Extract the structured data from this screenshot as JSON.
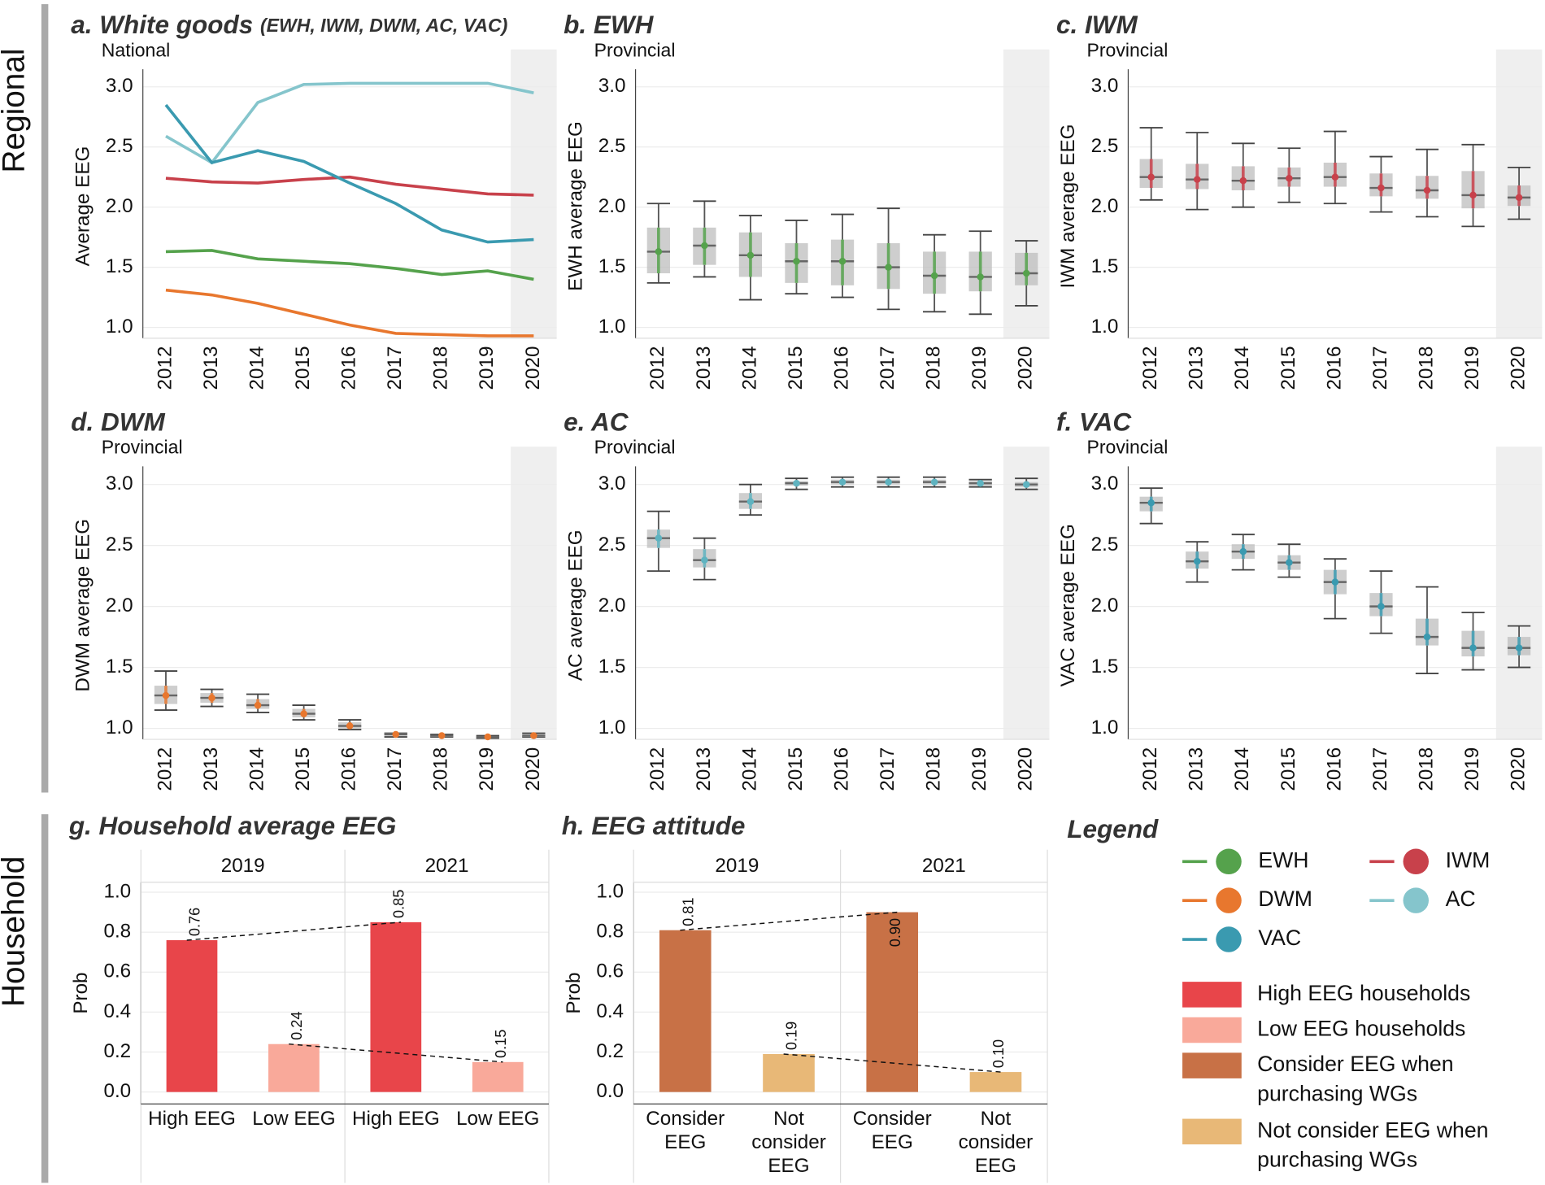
{
  "row_labels": [
    "Regional",
    "Household"
  ],
  "chart_data": [
    {
      "type": "line",
      "title": "a. White goods",
      "title_note": "(EWH, IWM, DWM, AC, VAC)",
      "subtitle": "National",
      "y_label": "Average EEG",
      "categories": [
        "2012",
        "2013",
        "2014",
        "2015",
        "2016",
        "2017",
        "2018",
        "2019",
        "2020"
      ],
      "shaded": [
        "2020"
      ],
      "ylim": [
        0.91,
        3.27
      ],
      "yticks": [
        {
          "value": 1,
          "label": "1.0"
        },
        1.5,
        {
          "value": 2,
          "label": "2.0"
        },
        2.5,
        {
          "value": 3,
          "label": "3.0"
        }
      ],
      "grid": true,
      "series": [
        {
          "name": "EWH",
          "color": "#55a24c",
          "values": [
            1.63,
            1.64,
            1.57,
            1.55,
            1.53,
            1.49,
            1.44,
            1.47,
            1.4
          ]
        },
        {
          "name": "IWM",
          "color": "#c8414b",
          "values": [
            2.24,
            2.21,
            2.2,
            2.23,
            2.25,
            2.19,
            2.15,
            2.11,
            2.1
          ]
        },
        {
          "name": "DWM",
          "color": "#e8772e",
          "values": [
            1.31,
            1.27,
            1.2,
            1.11,
            1.02,
            0.95,
            0.94,
            0.93,
            0.93
          ]
        },
        {
          "name": "AC",
          "color": "#85c5cc",
          "values": [
            2.59,
            2.37,
            2.87,
            3.02,
            3.03,
            3.03,
            3.03,
            3.03,
            2.95
          ]
        },
        {
          "name": "VAC",
          "color": "#3a9ab0",
          "values": [
            2.85,
            2.37,
            2.47,
            2.38,
            2.2,
            2.03,
            1.81,
            1.71,
            1.73
          ]
        }
      ]
    },
    {
      "type": "box",
      "title": "b. EWH",
      "subtitle": "Provincial",
      "y_label": "EWH average EEG",
      "color": "#55a24c",
      "categories": [
        "2012",
        "2013",
        "2014",
        "2015",
        "2016",
        "2017",
        "2018",
        "2019",
        "2020"
      ],
      "shaded": [
        "2020"
      ],
      "ylim": [
        0.91,
        3.27
      ],
      "yticks": [
        {
          "value": 1,
          "label": "1.0"
        },
        1.5,
        {
          "value": 2,
          "label": "2.0"
        },
        2.5,
        {
          "value": 3,
          "label": "3.0"
        }
      ],
      "grid": true,
      "whisker_low": [
        1.37,
        1.42,
        1.23,
        1.28,
        1.25,
        1.15,
        1.13,
        1.11,
        1.18
      ],
      "q1": [
        1.45,
        1.52,
        1.42,
        1.37,
        1.35,
        1.32,
        1.28,
        1.3,
        1.35
      ],
      "median": [
        1.63,
        1.68,
        1.6,
        1.55,
        1.55,
        1.5,
        1.43,
        1.42,
        1.45
      ],
      "q3": [
        1.83,
        1.83,
        1.79,
        1.7,
        1.73,
        1.7,
        1.63,
        1.63,
        1.62
      ],
      "whisker_high": [
        2.03,
        2.05,
        1.93,
        1.89,
        1.94,
        1.99,
        1.77,
        1.8,
        1.72
      ]
    },
    {
      "type": "box",
      "title": "c. IWM",
      "subtitle": "Provincial",
      "y_label": "IWM average EEG",
      "color": "#c8414b",
      "categories": [
        "2012",
        "2013",
        "2014",
        "2015",
        "2016",
        "2017",
        "2018",
        "2019",
        "2020"
      ],
      "shaded": [
        "2020"
      ],
      "ylim": [
        0.91,
        3.27
      ],
      "yticks": [
        {
          "value": 1,
          "label": "1.0"
        },
        1.5,
        {
          "value": 2,
          "label": "2.0"
        },
        2.5,
        {
          "value": 3,
          "label": "3.0"
        }
      ],
      "grid": true,
      "whisker_low": [
        2.06,
        1.98,
        2.0,
        2.04,
        2.03,
        1.96,
        1.92,
        1.84,
        1.9
      ],
      "q1": [
        2.16,
        2.15,
        2.14,
        2.17,
        2.17,
        2.09,
        2.07,
        1.99,
        2.01
      ],
      "median": [
        2.25,
        2.23,
        2.22,
        2.24,
        2.25,
        2.16,
        2.14,
        2.1,
        2.08
      ],
      "q3": [
        2.4,
        2.36,
        2.34,
        2.33,
        2.37,
        2.28,
        2.26,
        2.3,
        2.18
      ],
      "whisker_high": [
        2.66,
        2.62,
        2.53,
        2.49,
        2.63,
        2.42,
        2.48,
        2.52,
        2.33
      ]
    },
    {
      "type": "box",
      "title": "d. DWM",
      "subtitle": "Provincial",
      "y_label": "DWM average EEG",
      "color": "#e8772e",
      "categories": [
        "2012",
        "2013",
        "2014",
        "2015",
        "2016",
        "2017",
        "2018",
        "2019",
        "2020"
      ],
      "shaded": [
        "2020"
      ],
      "ylim": [
        0.91,
        3.27
      ],
      "yticks": [
        {
          "value": 1,
          "label": "1.0"
        },
        1.5,
        {
          "value": 2,
          "label": "2.0"
        },
        2.5,
        {
          "value": 3,
          "label": "3.0"
        }
      ],
      "grid": true,
      "whisker_low": [
        1.15,
        1.18,
        1.13,
        1.07,
        0.99,
        0.93,
        0.93,
        0.92,
        0.93
      ],
      "q1": [
        1.2,
        1.21,
        1.16,
        1.09,
        1.0,
        0.94,
        0.93,
        0.93,
        0.93
      ],
      "median": [
        1.27,
        1.25,
        1.19,
        1.12,
        1.02,
        0.95,
        0.94,
        0.93,
        0.94
      ],
      "q3": [
        1.35,
        1.29,
        1.24,
        1.16,
        1.05,
        0.96,
        0.94,
        0.93,
        0.95
      ],
      "whisker_high": [
        1.47,
        1.32,
        1.28,
        1.19,
        1.07,
        0.96,
        0.95,
        0.94,
        0.96
      ]
    },
    {
      "type": "box",
      "title": "e. AC",
      "subtitle": "Provincial",
      "y_label": "AC average EEG",
      "color": "#5fb3c0",
      "categories": [
        "2012",
        "2013",
        "2014",
        "2015",
        "2016",
        "2017",
        "2018",
        "2019",
        "2020"
      ],
      "shaded": [
        "2020"
      ],
      "ylim": [
        0.91,
        3.27
      ],
      "yticks": [
        {
          "value": 1,
          "label": "1.0"
        },
        1.5,
        {
          "value": 2,
          "label": "2.0"
        },
        2.5,
        {
          "value": 3,
          "label": "3.0"
        }
      ],
      "grid": true,
      "whisker_low": [
        2.29,
        2.22,
        2.75,
        2.96,
        2.98,
        2.98,
        2.98,
        2.98,
        2.96
      ],
      "q1": [
        2.48,
        2.32,
        2.8,
        2.99,
        3.0,
        3.0,
        3.0,
        2.99,
        2.98
      ],
      "median": [
        2.56,
        2.38,
        2.86,
        3.01,
        3.02,
        3.02,
        3.02,
        3.01,
        3.0
      ],
      "q3": [
        2.63,
        2.47,
        2.93,
        3.03,
        3.04,
        3.04,
        3.04,
        3.03,
        3.02
      ],
      "whisker_high": [
        2.78,
        2.56,
        3.0,
        3.05,
        3.06,
        3.06,
        3.06,
        3.04,
        3.05
      ]
    },
    {
      "type": "box",
      "title": "f. VAC",
      "subtitle": "Provincial",
      "y_label": "VAC average EEG",
      "color": "#3a9ab0",
      "categories": [
        "2012",
        "2013",
        "2014",
        "2015",
        "2016",
        "2017",
        "2018",
        "2019",
        "2020"
      ],
      "shaded": [
        "2020"
      ],
      "ylim": [
        0.91,
        3.27
      ],
      "yticks": [
        {
          "value": 1,
          "label": "1.0"
        },
        1.5,
        {
          "value": 2,
          "label": "2.0"
        },
        2.5,
        {
          "value": 3,
          "label": "3.0"
        }
      ],
      "grid": true,
      "whisker_low": [
        2.68,
        2.2,
        2.3,
        2.24,
        1.9,
        1.78,
        1.45,
        1.48,
        1.5
      ],
      "q1": [
        2.78,
        2.31,
        2.39,
        2.3,
        2.1,
        1.92,
        1.68,
        1.59,
        1.6
      ],
      "median": [
        2.85,
        2.37,
        2.45,
        2.36,
        2.2,
        2.0,
        1.75,
        1.66,
        1.66
      ],
      "q3": [
        2.9,
        2.45,
        2.51,
        2.42,
        2.3,
        2.11,
        1.9,
        1.8,
        1.75
      ],
      "whisker_high": [
        2.97,
        2.53,
        2.59,
        2.51,
        2.39,
        2.29,
        2.16,
        1.95,
        1.84
      ]
    },
    {
      "type": "facet_bar",
      "title": "g. Household average EEG",
      "y_label": "Prob",
      "categories": [
        "High EEG",
        "Low EEG"
      ],
      "colors": [
        "#e8454a",
        "#f9a99a"
      ],
      "ylim": [
        -0.06,
        1.05
      ],
      "yticks": [
        {
          "value": 0,
          "label": "0.0"
        },
        0.2,
        0.4,
        0.6,
        0.8,
        {
          "value": 1,
          "label": "1.0"
        }
      ],
      "grid": true,
      "facets": [
        {
          "name": "2019",
          "values": [
            0.76,
            0.24
          ],
          "value_labels": [
            "0.76",
            "0.24"
          ]
        },
        {
          "name": "2021",
          "values": [
            0.85,
            0.15
          ],
          "value_labels": [
            "0.85",
            "0.15"
          ]
        }
      ]
    },
    {
      "type": "facet_bar",
      "title": "h. EEG attitude",
      "y_label": "Prob",
      "categories": [
        "Consider EEG",
        "Not consider EEG"
      ],
      "colors": [
        "#c87146",
        "#e8b877"
      ],
      "ylim": [
        -0.06,
        1.05
      ],
      "yticks": [
        {
          "value": 0,
          "label": "0.0"
        },
        0.2,
        0.4,
        0.6,
        0.8,
        {
          "value": 1,
          "label": "1.0"
        }
      ],
      "grid": true,
      "facets": [
        {
          "name": "2019",
          "values": [
            0.81,
            0.19
          ],
          "value_labels": [
            "0.81",
            "0.19"
          ]
        },
        {
          "name": "2021",
          "values": [
            0.9,
            0.1
          ],
          "value_labels": [
            "0.90",
            "0.10"
          ]
        }
      ]
    }
  ],
  "legend": {
    "title": "Legend",
    "items": [
      {
        "name": "High EEG households",
        "color": "#e8454a"
      },
      {
        "name": "Low EEG households",
        "color": "#f9a99a"
      },
      {
        "name": "Consider EEG when purchasing WGs",
        "color": "#c87146"
      },
      {
        "name": "Not consider EEG when purchasing WGs",
        "color": "#e8b877"
      }
    ]
  }
}
